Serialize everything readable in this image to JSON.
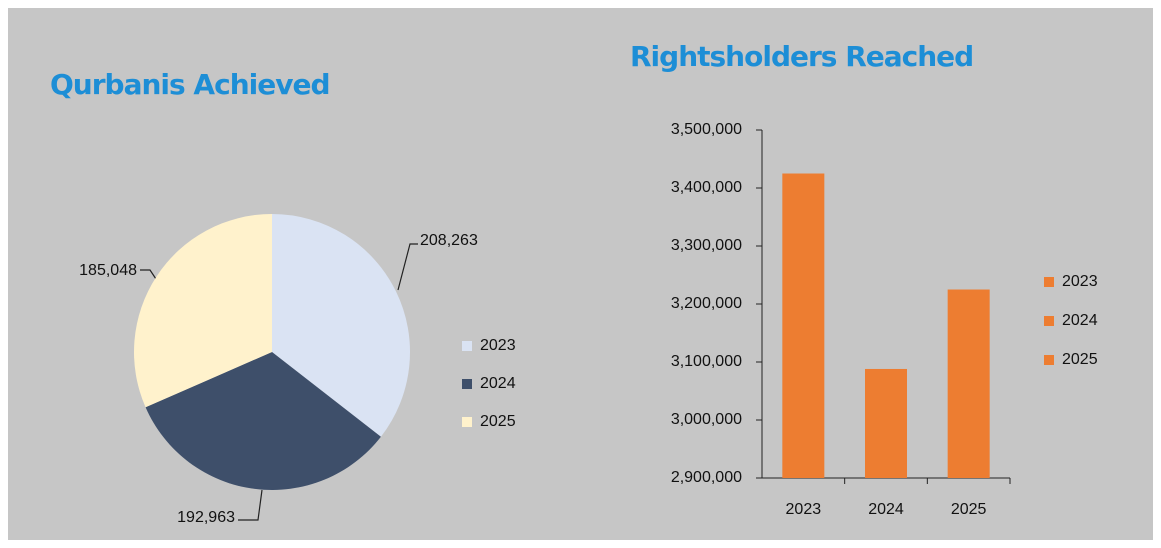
{
  "chart_data": [
    {
      "type": "pie",
      "title": "Qurbanis Achieved",
      "categories": [
        "2023",
        "2024",
        "2025"
      ],
      "values": [
        208263,
        192963,
        185048
      ],
      "value_labels": [
        "208,263",
        "192,963",
        "185,048"
      ],
      "colors": [
        "#dae3f3",
        "#3e4f6a",
        "#fff2cc"
      ],
      "legend": "right"
    },
    {
      "type": "bar",
      "title": "Rightsholders Reached",
      "categories": [
        "2023",
        "2024",
        "2025"
      ],
      "values": [
        3425000,
        3088000,
        3225000
      ],
      "color": "#ed7d31",
      "ylim": [
        2900000,
        3500000
      ],
      "yticks": [
        {
          "value": 2900000,
          "label": "2,900,000"
        },
        {
          "value": 3000000,
          "label": "3,000,000"
        },
        {
          "value": 3100000,
          "label": "3,100,000"
        },
        {
          "value": 3200000,
          "label": "3,200,000"
        },
        {
          "value": 3300000,
          "label": "3,300,000"
        },
        {
          "value": 3400000,
          "label": "3,400,000"
        },
        {
          "value": 3500000,
          "label": "3,500,000"
        }
      ],
      "legend": "right"
    }
  ]
}
